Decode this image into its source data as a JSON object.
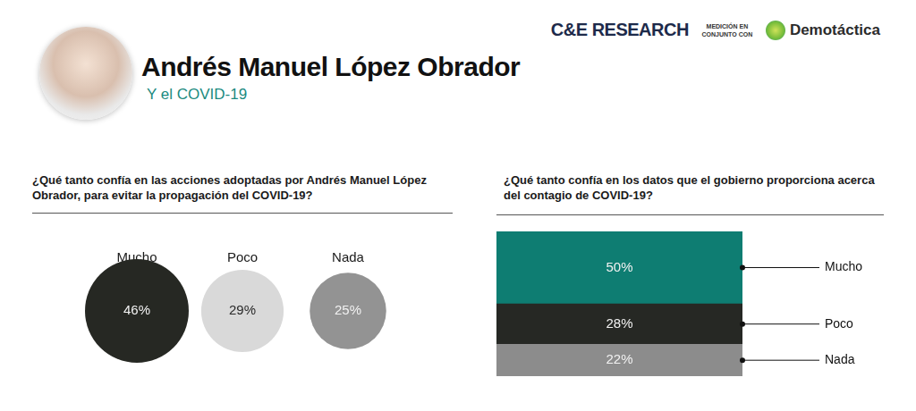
{
  "header": {
    "title": "Andrés Manuel López Obrador",
    "subtitle": "Y el COVID-19",
    "logos": [
      "C&E RESEARCH",
      "MEDICIÓN EN CONJUNTO CON",
      "Demotáctica"
    ]
  },
  "chart_data": [
    {
      "type": "bubble",
      "title": "¿Qué tanto confía en las acciones adoptadas por Andrés Manuel López Obrador, para evitar la propagación del COVID-19?",
      "categories": [
        "Mucho",
        "Poco",
        "Nada"
      ],
      "values": [
        46,
        29,
        25
      ],
      "value_labels": [
        "46%",
        "29%",
        "25%"
      ],
      "colors": [
        "#262823",
        "#d9d9d9",
        "#939393"
      ],
      "data_labels": true,
      "tick_labels": "x",
      "grid": false
    },
    {
      "type": "bar",
      "title": "¿Qué tanto confía en los datos que el gobierno proporciona acerca del contagio de COVID-19?",
      "categories": [
        null
      ],
      "series": [
        {
          "name": "Nada",
          "color": "#8c8c8c",
          "values": [
            22
          ],
          "value_labels": [
            "22%"
          ]
        },
        {
          "name": "Poco",
          "color": "#262824",
          "values": [
            28
          ],
          "value_labels": [
            "28%"
          ]
        },
        {
          "name": "Mucho",
          "color": "#0e7d72",
          "values": [
            50
          ],
          "value_labels": [
            "50%"
          ]
        }
      ],
      "stacked": true,
      "ylim": [
        0,
        100
      ],
      "data_labels": true,
      "tick_labels": false,
      "grid": false,
      "legend": "right"
    }
  ]
}
